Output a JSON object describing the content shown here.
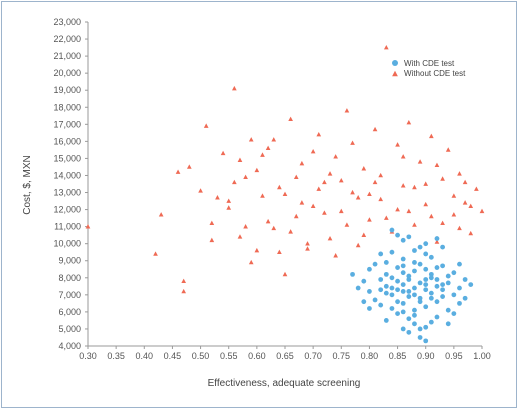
{
  "chart_data": {
    "type": "scatter",
    "title": "",
    "xlabel": "Effectiveness, adequate screening",
    "ylabel": "Cost, $, MXN",
    "xlim": [
      0.3,
      1.0
    ],
    "ylim": [
      4000,
      23000
    ],
    "x_ticks": [
      "0.30",
      "0.35",
      "0.40",
      "0.45",
      "0.50",
      "0.55",
      "0.60",
      "0.65",
      "0.70",
      "0.75",
      "0.80",
      "0.85",
      "0.90",
      "0.95",
      "1.00"
    ],
    "y_ticks": [
      "4,000",
      "5,000",
      "6,000",
      "7,000",
      "8,000",
      "9,000",
      "10,000",
      "11,000",
      "12,000",
      "13,000",
      "14,000",
      "15,000",
      "16,000",
      "17,000",
      "18,000",
      "19,000",
      "20,000",
      "21,000",
      "22,000",
      "23,000"
    ],
    "grid": false,
    "legend_position": "top-right",
    "series": [
      {
        "name": "With CDE test",
        "marker": "circle",
        "color": "#5aaee0",
        "points": [
          [
            0.88,
            7400
          ],
          [
            0.86,
            7200
          ],
          [
            0.9,
            7600
          ],
          [
            0.84,
            7000
          ],
          [
            0.92,
            7900
          ],
          [
            0.87,
            8100
          ],
          [
            0.89,
            6800
          ],
          [
            0.85,
            7800
          ],
          [
            0.91,
            7100
          ],
          [
            0.83,
            7500
          ],
          [
            0.93,
            7300
          ],
          [
            0.86,
            6500
          ],
          [
            0.88,
            8400
          ],
          [
            0.82,
            7900
          ],
          [
            0.9,
            6300
          ],
          [
            0.94,
            7700
          ],
          [
            0.85,
            8600
          ],
          [
            0.87,
            6900
          ],
          [
            0.89,
            8800
          ],
          [
            0.91,
            8200
          ],
          [
            0.84,
            6200
          ],
          [
            0.92,
            6600
          ],
          [
            0.8,
            7200
          ],
          [
            0.95,
            7000
          ],
          [
            0.86,
            9100
          ],
          [
            0.88,
            5800
          ],
          [
            0.9,
            9400
          ],
          [
            0.83,
            8900
          ],
          [
            0.93,
            8700
          ],
          [
            0.81,
            6700
          ],
          [
            0.96,
            7400
          ],
          [
            0.87,
            5600
          ],
          [
            0.89,
            9800
          ],
          [
            0.85,
            5900
          ],
          [
            0.91,
            9200
          ],
          [
            0.84,
            9500
          ],
          [
            0.92,
            5700
          ],
          [
            0.79,
            7800
          ],
          [
            0.97,
            7900
          ],
          [
            0.86,
            10200
          ],
          [
            0.88,
            5300
          ],
          [
            0.9,
            10000
          ],
          [
            0.82,
            6400
          ],
          [
            0.94,
            6100
          ],
          [
            0.87,
            4800
          ],
          [
            0.89,
            4500
          ],
          [
            0.85,
            10500
          ],
          [
            0.93,
            9800
          ],
          [
            0.8,
            8500
          ],
          [
            0.95,
            8300
          ],
          [
            0.78,
            7400
          ],
          [
            0.96,
            6500
          ],
          [
            0.83,
            5500
          ],
          [
            0.91,
            5400
          ],
          [
            0.86,
            7600
          ],
          [
            0.88,
            7000
          ],
          [
            0.9,
            7300
          ],
          [
            0.84,
            8000
          ],
          [
            0.92,
            7500
          ],
          [
            0.87,
            7900
          ],
          [
            0.89,
            6600
          ],
          [
            0.85,
            7300
          ],
          [
            0.91,
            8000
          ],
          [
            0.83,
            7100
          ],
          [
            0.93,
            6900
          ],
          [
            0.86,
            8300
          ],
          [
            0.88,
            6100
          ],
          [
            0.9,
            8500
          ],
          [
            0.82,
            7300
          ],
          [
            0.94,
            8100
          ],
          [
            0.81,
            8800
          ],
          [
            0.97,
            6800
          ],
          [
            0.98,
            7600
          ],
          [
            0.77,
            8200
          ],
          [
            0.84,
            10800
          ],
          [
            0.9,
            4300
          ],
          [
            0.86,
            5000
          ],
          [
            0.92,
            10300
          ],
          [
            0.8,
            6200
          ],
          [
            0.95,
            5900
          ],
          [
            0.87,
            7200
          ],
          [
            0.89,
            7700
          ],
          [
            0.85,
            6600
          ],
          [
            0.91,
            6800
          ],
          [
            0.88,
            8900
          ],
          [
            0.86,
            6000
          ],
          [
            0.9,
            7900
          ],
          [
            0.84,
            7400
          ],
          [
            0.92,
            8600
          ],
          [
            0.83,
            8200
          ],
          [
            0.93,
            7600
          ],
          [
            0.79,
            6600
          ],
          [
            0.96,
            8800
          ],
          [
            0.82,
            9400
          ],
          [
            0.94,
            5300
          ],
          [
            0.88,
            9600
          ],
          [
            0.86,
            8700
          ],
          [
            0.9,
            5100
          ],
          [
            0.87,
            10400
          ],
          [
            0.89,
            5000
          ]
        ]
      },
      {
        "name": "Without CDE test",
        "marker": "triangle",
        "color": "#ef6a54",
        "points": [
          [
            0.3,
            11000
          ],
          [
            0.42,
            9400
          ],
          [
            0.43,
            11700
          ],
          [
            0.46,
            14200
          ],
          [
            0.47,
            7800
          ],
          [
            0.47,
            7200
          ],
          [
            0.48,
            14500
          ],
          [
            0.5,
            13100
          ],
          [
            0.51,
            16900
          ],
          [
            0.52,
            11200
          ],
          [
            0.54,
            15300
          ],
          [
            0.55,
            12500
          ],
          [
            0.56,
            19100
          ],
          [
            0.57,
            10400
          ],
          [
            0.58,
            13900
          ],
          [
            0.59,
            16100
          ],
          [
            0.6,
            9600
          ],
          [
            0.61,
            12800
          ],
          [
            0.62,
            15600
          ],
          [
            0.63,
            10900
          ],
          [
            0.64,
            13300
          ],
          [
            0.65,
            8200
          ],
          [
            0.66,
            17300
          ],
          [
            0.67,
            11600
          ],
          [
            0.68,
            14700
          ],
          [
            0.69,
            9700
          ],
          [
            0.7,
            12200
          ],
          [
            0.71,
            16400
          ],
          [
            0.72,
            13600
          ],
          [
            0.73,
            10300
          ],
          [
            0.74,
            15100
          ],
          [
            0.75,
            11900
          ],
          [
            0.76,
            17800
          ],
          [
            0.77,
            13000
          ],
          [
            0.78,
            9900
          ],
          [
            0.79,
            14400
          ],
          [
            0.8,
            11400
          ],
          [
            0.81,
            16700
          ],
          [
            0.82,
            12600
          ],
          [
            0.83,
            21500
          ],
          [
            0.84,
            10700
          ],
          [
            0.85,
            15800
          ],
          [
            0.86,
            13400
          ],
          [
            0.87,
            17100
          ],
          [
            0.88,
            11100
          ],
          [
            0.89,
            14800
          ],
          [
            0.9,
            12300
          ],
          [
            0.91,
            16300
          ],
          [
            0.92,
            10100
          ],
          [
            0.93,
            13800
          ],
          [
            0.94,
            15500
          ],
          [
            0.95,
            11700
          ],
          [
            0.96,
            14100
          ],
          [
            0.97,
            12400
          ],
          [
            0.98,
            10600
          ],
          [
            0.99,
            13200
          ],
          [
            1.0,
            11900
          ],
          [
            0.55,
            12100
          ],
          [
            0.6,
            14300
          ],
          [
            0.65,
            12900
          ],
          [
            0.7,
            15400
          ],
          [
            0.75,
            13700
          ],
          [
            0.8,
            12900
          ],
          [
            0.85,
            12000
          ],
          [
            0.9,
            13500
          ],
          [
            0.95,
            12800
          ],
          [
            0.52,
            10200
          ],
          [
            0.57,
            14900
          ],
          [
            0.62,
            11300
          ],
          [
            0.67,
            13900
          ],
          [
            0.72,
            11800
          ],
          [
            0.77,
            15900
          ],
          [
            0.82,
            14000
          ],
          [
            0.87,
            11900
          ],
          [
            0.92,
            14600
          ],
          [
            0.97,
            13600
          ],
          [
            0.53,
            12700
          ],
          [
            0.58,
            11000
          ],
          [
            0.63,
            16100
          ],
          [
            0.68,
            12400
          ],
          [
            0.73,
            14100
          ],
          [
            0.78,
            12700
          ],
          [
            0.83,
            11500
          ],
          [
            0.88,
            13300
          ],
          [
            0.93,
            11200
          ],
          [
            0.98,
            12200
          ],
          [
            0.56,
            13600
          ],
          [
            0.61,
            15200
          ],
          [
            0.66,
            10700
          ],
          [
            0.71,
            13200
          ],
          [
            0.76,
            11100
          ],
          [
            0.81,
            13600
          ],
          [
            0.86,
            15100
          ],
          [
            0.91,
            11600
          ],
          [
            0.96,
            10900
          ],
          [
            0.59,
            8900
          ],
          [
            0.64,
            9500
          ],
          [
            0.69,
            10000
          ],
          [
            0.74,
            9300
          ],
          [
            0.79,
            10500
          ]
        ]
      }
    ]
  }
}
